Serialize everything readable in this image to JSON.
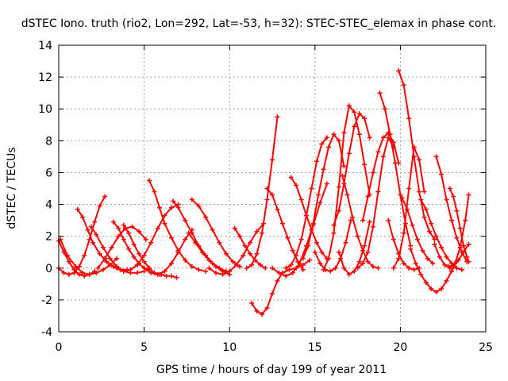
{
  "chart_data": {
    "type": "scatter",
    "title": "dSTEC Iono. truth (rio2, Lon=292, Lat=-53, h=32): STEC-STEC_elemax in phase cont.",
    "xlabel": "GPS time / hours of day 199 of year 2011",
    "ylabel": "dSTEC  / TECUs",
    "xlim": [
      0,
      25
    ],
    "ylim": [
      -4,
      14
    ],
    "xticks": [
      "0",
      "5",
      "10",
      "15",
      "20",
      "25"
    ],
    "yticks": [
      "-4",
      "-2",
      "0",
      "2",
      "4",
      "6",
      "8",
      "10",
      "12",
      "14"
    ],
    "grid": true,
    "marker": "plus",
    "color": "#ff0000",
    "series": [
      {
        "x": [
          0.0,
          0.3,
          0.6,
          0.9,
          1.2,
          1.5,
          1.8,
          2.1,
          2.4,
          2.7
        ],
        "y": [
          0.0,
          -0.3,
          -0.4,
          -0.3,
          0.1,
          0.8,
          1.8,
          2.9,
          3.9,
          4.5
        ]
      },
      {
        "x": [
          0.1,
          0.5,
          1.0,
          1.4,
          1.8,
          2.2,
          2.6,
          3.0,
          3.4
        ],
        "y": [
          1.8,
          0.8,
          0.1,
          -0.3,
          -0.4,
          -0.3,
          -0.1,
          0.2,
          0.6
        ]
      },
      {
        "x": [
          1.1,
          1.4,
          1.7,
          2.0,
          2.4,
          2.8,
          3.2,
          3.6,
          4.0
        ],
        "y": [
          3.7,
          3.2,
          2.4,
          1.6,
          0.9,
          0.4,
          0.1,
          -0.1,
          -0.1
        ]
      },
      {
        "x": [
          0.0,
          0.3,
          0.6,
          0.9,
          1.2,
          1.5,
          1.8,
          2.1
        ],
        "y": [
          1.7,
          1.0,
          0.4,
          -0.1,
          -0.4,
          -0.5,
          -0.4,
          -0.2
        ]
      },
      {
        "x": [
          1.9,
          2.2,
          2.6,
          3.0,
          3.4,
          3.8,
          4.2,
          4.6,
          5.0
        ],
        "y": [
          2.6,
          2.1,
          1.3,
          0.6,
          0.1,
          -0.2,
          -0.3,
          -0.3,
          -0.2
        ]
      },
      {
        "x": [
          3.2,
          3.5,
          3.8,
          4.1,
          4.4,
          4.7,
          5.0,
          5.3
        ],
        "y": [
          2.9,
          2.5,
          1.8,
          1.2,
          0.7,
          0.3,
          0.0,
          -0.1
        ]
      },
      {
        "x": [
          3.4,
          3.8,
          4.2,
          4.6,
          5.0,
          5.4,
          5.8,
          6.2,
          6.6,
          7.0
        ],
        "y": [
          0.0,
          -0.2,
          -0.1,
          0.2,
          0.8,
          1.6,
          2.5,
          3.3,
          3.8,
          4.0
        ]
      },
      {
        "x": [
          3.8,
          4.1,
          4.4,
          4.7,
          5.0,
          5.3,
          5.6,
          5.9
        ],
        "y": [
          2.7,
          2.2,
          1.5,
          0.9,
          0.4,
          0.0,
          -0.3,
          -0.4
        ]
      },
      {
        "x": [
          2.3,
          2.7,
          3.1,
          3.5,
          3.9,
          4.3,
          4.7,
          5.1
        ],
        "y": [
          0.0,
          0.6,
          1.3,
          2.0,
          2.5,
          2.6,
          2.3,
          1.8
        ]
      },
      {
        "x": [
          5.3,
          5.6,
          5.9,
          6.2,
          6.6,
          7.0,
          7.4,
          7.8,
          8.2,
          8.6
        ],
        "y": [
          5.5,
          4.8,
          3.8,
          2.8,
          1.9,
          1.1,
          0.5,
          0.1,
          -0.1,
          -0.2
        ]
      },
      {
        "x": [
          5.0,
          5.4,
          5.8,
          6.2,
          6.6,
          7.0,
          7.4,
          7.8
        ],
        "y": [
          0.0,
          -0.3,
          -0.4,
          -0.2,
          0.3,
          1.0,
          1.8,
          2.4
        ]
      },
      {
        "x": [
          6.0,
          6.3,
          6.6,
          6.9
        ],
        "y": [
          -0.4,
          -0.5,
          -0.5,
          -0.6
        ]
      },
      {
        "x": [
          6.7,
          7.0,
          7.4,
          7.8,
          8.2,
          8.6,
          9.0,
          9.4,
          9.8
        ],
        "y": [
          4.2,
          3.8,
          3.0,
          2.2,
          1.4,
          0.8,
          0.3,
          0.0,
          -0.2
        ]
      },
      {
        "x": [
          7.8,
          8.2,
          8.6,
          9.0,
          9.4,
          9.8,
          10.2,
          10.6
        ],
        "y": [
          4.3,
          3.9,
          3.2,
          2.4,
          1.6,
          0.9,
          0.4,
          0.1
        ]
      },
      {
        "x": [
          7.6,
          8.0,
          8.4,
          8.8,
          9.2,
          9.6,
          10.0
        ],
        "y": [
          2.2,
          1.6,
          1.0,
          0.5,
          0.1,
          -0.2,
          -0.4
        ]
      },
      {
        "x": [
          8.8,
          9.2,
          9.6,
          10.0,
          10.4,
          10.8,
          11.2,
          11.6,
          12.0
        ],
        "y": [
          0.0,
          -0.3,
          -0.4,
          -0.2,
          0.2,
          0.8,
          1.6,
          2.3,
          2.8
        ]
      },
      {
        "x": [
          10.3,
          10.6,
          10.9,
          11.2,
          11.5,
          11.8,
          12.1
        ],
        "y": [
          2.5,
          2.0,
          1.4,
          0.9,
          0.5,
          0.2,
          0.0
        ]
      },
      {
        "x": [
          11.3,
          11.6,
          11.9,
          12.2,
          12.5,
          12.8,
          13.1,
          13.5,
          13.9,
          14.3,
          14.7
        ],
        "y": [
          -2.2,
          -2.7,
          -2.9,
          -2.5,
          -1.6,
          -0.8,
          -0.3,
          -0.1,
          0.0,
          0.2,
          0.5
        ]
      },
      {
        "x": [
          11.0,
          11.3,
          11.6,
          11.9,
          12.2,
          12.5,
          12.8
        ],
        "y": [
          0.0,
          0.2,
          0.9,
          2.2,
          4.3,
          6.8,
          9.5
        ]
      },
      {
        "x": [
          12.2,
          12.5,
          12.8,
          13.1,
          13.4,
          13.7,
          14.0,
          14.3
        ],
        "y": [
          5.0,
          4.6,
          3.7,
          2.8,
          1.9,
          1.1,
          0.4,
          -0.1
        ]
      },
      {
        "x": [
          12.5,
          12.9,
          13.3,
          13.7,
          14.1,
          14.5,
          14.9,
          15.3,
          15.7
        ],
        "y": [
          0.0,
          -0.3,
          -0.5,
          -0.3,
          0.3,
          1.4,
          2.7,
          4.1,
          5.3
        ]
      },
      {
        "x": [
          13.3,
          13.6,
          13.9,
          14.2,
          14.5,
          14.8,
          15.1,
          15.4,
          15.7
        ],
        "y": [
          0.0,
          0.2,
          0.8,
          1.8,
          3.3,
          5.0,
          6.7,
          7.8,
          8.2
        ]
      },
      {
        "x": [
          13.6,
          13.9,
          14.2,
          14.5,
          14.8,
          15.1,
          15.4,
          15.7
        ],
        "y": [
          5.7,
          5.2,
          4.3,
          3.3,
          2.4,
          1.6,
          1.0,
          0.6
        ]
      },
      {
        "x": [
          14.3,
          14.6,
          14.9,
          15.2,
          15.5,
          15.8,
          16.1,
          16.4,
          16.7
        ],
        "y": [
          0.6,
          1.4,
          2.8,
          4.6,
          6.2,
          7.6,
          8.4,
          8.0,
          6.4
        ]
      },
      {
        "x": [
          15.0,
          15.3,
          15.6,
          15.9,
          16.2,
          16.5,
          16.8,
          17.1
        ],
        "y": [
          1.0,
          0.3,
          -0.1,
          -0.2,
          0.0,
          0.6,
          1.6,
          3.0
        ]
      },
      {
        "x": [
          15.5,
          15.8,
          16.1,
          16.4,
          16.7,
          17.0,
          17.3,
          17.6,
          17.9,
          18.2
        ],
        "y": [
          -0.1,
          0.6,
          2.2,
          5.1,
          8.5,
          10.2,
          9.8,
          8.4,
          6.5,
          4.6
        ]
      },
      {
        "x": [
          16.1,
          16.4,
          16.7,
          17.0,
          17.3,
          17.6,
          17.9,
          18.2
        ],
        "y": [
          2.7,
          3.6,
          5.3,
          7.2,
          8.9,
          9.7,
          9.4,
          8.2
        ]
      },
      {
        "x": [
          16.6,
          16.9,
          17.2,
          17.5,
          17.8,
          18.1,
          18.4,
          18.7
        ],
        "y": [
          5.8,
          4.6,
          3.2,
          2.0,
          1.1,
          0.4,
          0.1,
          0.0
        ]
      },
      {
        "x": [
          17.5,
          17.8,
          18.1,
          18.4,
          18.7,
          19.0,
          19.3,
          19.6
        ],
        "y": [
          0.0,
          0.3,
          1.0,
          2.6,
          4.8,
          7.0,
          8.2,
          7.6
        ]
      },
      {
        "x": [
          16.4,
          16.7,
          17.0,
          17.3,
          17.6,
          17.9,
          18.2
        ],
        "y": [
          1.0,
          0.0,
          -0.4,
          -0.2,
          0.4,
          1.4,
          2.9
        ]
      },
      {
        "x": [
          17.8,
          18.1,
          18.4,
          18.7,
          19.0,
          19.3,
          19.6,
          19.9
        ],
        "y": [
          3.0,
          4.5,
          6.0,
          7.3,
          8.2,
          8.5,
          7.9,
          6.6
        ]
      },
      {
        "x": [
          18.8,
          19.1,
          19.4,
          19.7,
          20.0,
          20.3,
          20.6
        ],
        "y": [
          11.0,
          10.0,
          8.4,
          6.6,
          4.6,
          2.8,
          1.4
        ]
      },
      {
        "x": [
          19.3,
          19.6,
          19.9,
          20.2,
          20.5,
          20.8,
          21.1
        ],
        "y": [
          3.0,
          1.8,
          0.9,
          0.3,
          0.0,
          -0.1,
          0.0
        ]
      },
      {
        "x": [
          19.9,
          20.2,
          20.5,
          20.8,
          21.1,
          21.4,
          21.7,
          22.0
        ],
        "y": [
          12.4,
          11.5,
          9.4,
          7.0,
          4.8,
          3.2,
          2.3,
          1.8
        ]
      },
      {
        "x": [
          19.6,
          19.9,
          20.2,
          20.5,
          20.8,
          21.1,
          21.4
        ],
        "y": [
          0.0,
          0.6,
          2.2,
          5.0,
          7.6,
          6.8,
          4.8
        ]
      },
      {
        "x": [
          20.1,
          20.4,
          20.7,
          21.0,
          21.3,
          21.6,
          21.9
        ],
        "y": [
          4.4,
          3.7,
          2.7,
          1.8,
          1.1,
          0.6,
          0.3
        ]
      },
      {
        "x": [
          20.6,
          20.9,
          21.2,
          21.5,
          21.8,
          22.1,
          22.4,
          22.7,
          23.0,
          23.3
        ],
        "y": [
          1.2,
          0.3,
          -0.4,
          -0.9,
          -1.3,
          -1.5,
          -1.3,
          -0.8,
          -0.2,
          0.4
        ]
      },
      {
        "x": [
          21.2,
          21.5,
          21.8,
          22.1,
          22.4,
          22.7,
          23.0,
          23.3,
          23.6
        ],
        "y": [
          4.3,
          3.7,
          2.8,
          2.0,
          1.3,
          0.7,
          0.3,
          0.0,
          -0.1
        ]
      },
      {
        "x": [
          22.1,
          22.4,
          22.7,
          23.0,
          23.3,
          23.6,
          23.9
        ],
        "y": [
          7.0,
          5.9,
          4.3,
          3.0,
          1.9,
          1.0,
          0.4
        ]
      },
      {
        "x": [
          22.0,
          22.3,
          22.6,
          22.9,
          23.2,
          23.5,
          23.8,
          24.0
        ],
        "y": [
          1.5,
          0.7,
          0.2,
          0.0,
          0.3,
          1.3,
          3.0,
          4.6
        ]
      },
      {
        "x": [
          22.9,
          23.1,
          23.3,
          23.5,
          23.7,
          23.9,
          24.0
        ],
        "y": [
          5.0,
          4.5,
          3.6,
          2.5,
          1.4,
          0.7,
          0.4
        ]
      },
      {
        "x": [
          22.8,
          23.1,
          23.4,
          23.7,
          24.0
        ],
        "y": [
          0.1,
          0.2,
          0.5,
          1.0,
          1.5
        ]
      }
    ]
  }
}
